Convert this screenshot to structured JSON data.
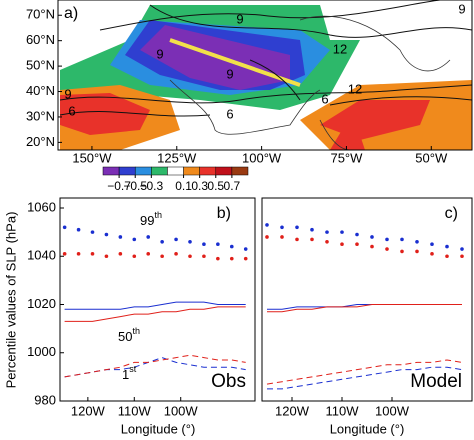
{
  "chart_data": [
    {
      "type": "map",
      "panel_label": "a)",
      "xlim": [
        -160,
        -38
      ],
      "ylim": [
        17,
        76
      ],
      "xticks": [
        {
          "value": -150,
          "label": "150°W"
        },
        {
          "value": -125,
          "label": "125°W"
        },
        {
          "value": -100,
          "label": "100°W"
        },
        {
          "value": -75,
          "label": "75°W"
        },
        {
          "value": -50,
          "label": "50°W"
        }
      ],
      "yticks": [
        {
          "value": 70,
          "label": "70°N"
        },
        {
          "value": 60,
          "label": "60°N"
        },
        {
          "value": 50,
          "label": "50°N"
        },
        {
          "value": 40,
          "label": "40°N"
        },
        {
          "value": 30,
          "label": "30°N"
        },
        {
          "value": 20,
          "label": "20°N"
        }
      ],
      "contour_labels": [
        "9",
        "9",
        "9",
        "12",
        "6",
        "6",
        "9",
        "12",
        "6",
        "9"
      ],
      "colorbar": {
        "lim": [
          -0.9,
          0.9
        ],
        "colors": [
          "#7b2fb5",
          "#2f3fd0",
          "#2a8ee0",
          "#2db86a",
          "#ffffff",
          "#f08a1c",
          "#e8322a",
          "#c0101a",
          "#9a3a12"
        ],
        "ticks": [
          {
            "value": -0.7,
            "label": "−0.7"
          },
          {
            "value": -0.5,
            "label": "−0.5"
          },
          {
            "value": -0.3,
            "label": "−0.3"
          },
          0.1,
          0.3,
          0.5,
          0.7
        ]
      }
    },
    {
      "type": "line",
      "panel_label": "b)",
      "tag": "Obs",
      "y_label": "Percentile values of SLP (hPa)",
      "x_label": "Longitude (°)",
      "xlim": [
        -126,
        -84
      ],
      "ylim": [
        980,
        1060
      ],
      "xticks": [
        {
          "value": -120,
          "label": "120W"
        },
        {
          "value": -110,
          "label": "110W"
        },
        {
          "value": -100,
          "label": "100W"
        }
      ],
      "yticks": [
        980,
        1000,
        1020,
        1040,
        1060
      ],
      "x": [
        -125,
        -122,
        -119,
        -116,
        -113,
        -110,
        -107,
        -104,
        -101,
        -98,
        -95,
        -92,
        -89,
        -86
      ],
      "series": [
        {
          "color": "#1a2fd0",
          "style": "dotted",
          "values": [
            1052,
            1051,
            1050,
            1049,
            1048,
            1047,
            1048,
            1046,
            1047,
            1046,
            1045,
            1045,
            1044,
            1043
          ]
        },
        {
          "color": "#e0201a",
          "style": "dotted",
          "values": [
            1041,
            1041,
            1041,
            1040,
            1041,
            1040,
            1041,
            1040,
            1041,
            1040,
            1040,
            1039,
            1039,
            1039
          ]
        },
        {
          "color": "#1a2fd0",
          "style": "solid",
          "values": [
            1018,
            1018,
            1018,
            1018,
            1018,
            1019,
            1019,
            1020,
            1021,
            1021,
            1021,
            1020,
            1020,
            1020
          ]
        },
        {
          "color": "#e0201a",
          "style": "solid",
          "values": [
            1013,
            1013,
            1013,
            1014,
            1015,
            1016,
            1016,
            1017,
            1017,
            1018,
            1018,
            1019,
            1019,
            1019
          ]
        },
        {
          "color": "#1a2fd0",
          "style": "dashed",
          "values": [
            990,
            991,
            992,
            993,
            993,
            994,
            996,
            998,
            996,
            995,
            994,
            994,
            994,
            993
          ]
        },
        {
          "color": "#e0201a",
          "style": "dashed",
          "values": [
            990,
            991,
            992,
            993,
            994,
            996,
            996,
            997,
            998,
            999,
            998,
            997,
            997,
            996
          ]
        }
      ],
      "annotations": [
        {
          "text": "99",
          "sup": "th"
        },
        {
          "text": "50",
          "sup": "th"
        },
        {
          "text": "1",
          "sup": "st"
        }
      ]
    },
    {
      "type": "line",
      "panel_label": "c)",
      "tag": "Model",
      "x_label": "Longitude (°)",
      "xlim": [
        -126,
        -84
      ],
      "ylim": [
        980,
        1060
      ],
      "xticks": [
        {
          "value": -120,
          "label": "120W"
        },
        {
          "value": -110,
          "label": "110W"
        },
        {
          "value": -100,
          "label": "100W"
        }
      ],
      "x": [
        -125,
        -122,
        -119,
        -116,
        -113,
        -110,
        -107,
        -104,
        -101,
        -98,
        -95,
        -92,
        -89,
        -86
      ],
      "series": [
        {
          "color": "#1a2fd0",
          "style": "dotted",
          "values": [
            1053,
            1052,
            1052,
            1051,
            1050,
            1050,
            1049,
            1048,
            1047,
            1047,
            1046,
            1045,
            1044,
            1043
          ]
        },
        {
          "color": "#e0201a",
          "style": "dotted",
          "values": [
            1048,
            1048,
            1047,
            1047,
            1046,
            1045,
            1045,
            1044,
            1043,
            1042,
            1042,
            1041,
            1040,
            1040
          ]
        },
        {
          "color": "#1a2fd0",
          "style": "solid",
          "values": [
            1018,
            1018,
            1019,
            1019,
            1019,
            1019,
            1020,
            1020,
            1020,
            1020,
            1020,
            1020,
            1020,
            1020
          ]
        },
        {
          "color": "#e0201a",
          "style": "solid",
          "values": [
            1017,
            1017,
            1018,
            1018,
            1019,
            1019,
            1019,
            1020,
            1020,
            1020,
            1020,
            1020,
            1020,
            1020
          ]
        },
        {
          "color": "#1a2fd0",
          "style": "dashed",
          "values": [
            985,
            985,
            986,
            987,
            988,
            989,
            990,
            991,
            992,
            993,
            993,
            994,
            994,
            993
          ]
        },
        {
          "color": "#e0201a",
          "style": "dashed",
          "values": [
            987,
            988,
            989,
            990,
            991,
            992,
            993,
            994,
            995,
            995,
            996,
            996,
            997,
            996
          ]
        }
      ]
    }
  ]
}
